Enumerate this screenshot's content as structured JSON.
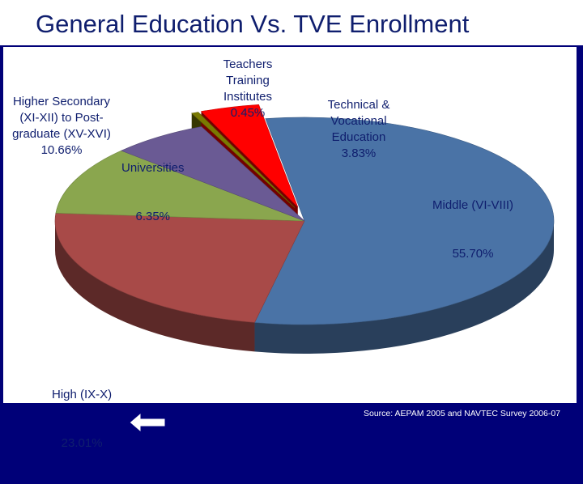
{
  "slide": {
    "title": "General Education Vs. TVE Enrollment",
    "source": "Source: AEPAM 2005 and NAVTEC Survey 2006-07",
    "back_icon": "left-arrow-icon"
  },
  "chart_data": {
    "type": "pie",
    "title": "",
    "slices": [
      {
        "label": "Middle (VI-VIII)",
        "value": 55.7,
        "value_text": "55.70%",
        "color": "#4a73a6"
      },
      {
        "label": "High (IX-X)",
        "value": 23.01,
        "value_text": "23.01%",
        "color": "#a84a48"
      },
      {
        "label": "Higher Secondary (XI-XII) to Post-graduate (XV-XVI)",
        "value": 10.66,
        "value_text": "10.66%",
        "color": "#8aa64e"
      },
      {
        "label": "Universities",
        "value": 6.35,
        "value_text": "6.35%",
        "color": "#6a5a94"
      },
      {
        "label": "Teachers Training Institutes",
        "value": 0.45,
        "value_text": "0.45%",
        "color": "#7a7a00"
      },
      {
        "label": "Technical & Vocational Education",
        "value": 3.83,
        "value_text": "3.83%",
        "color": "#ff0000"
      }
    ],
    "legend": "none",
    "style": "3d-exploded"
  }
}
